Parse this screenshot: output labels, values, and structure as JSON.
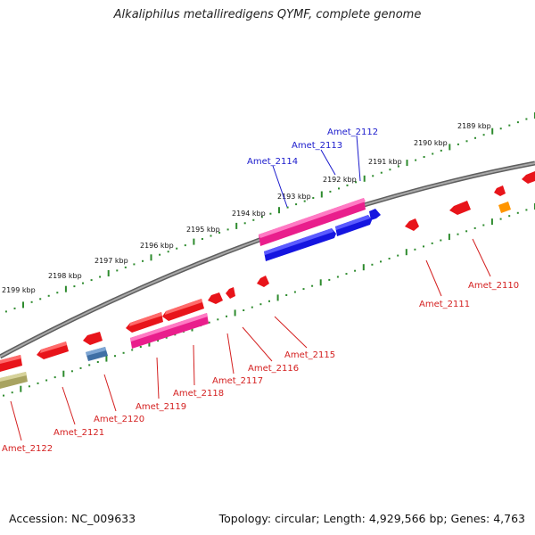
{
  "title": "Alkaliphilus metalliredigens QYMF, complete genome",
  "footer": {
    "accession": "Accession: NC_009633",
    "summary": "Topology: circular; Length: 4,929,566 bp; Genes: 4,763"
  },
  "colors": {
    "backbone": "#8c8c8c",
    "ruler_tick": "#2e8b2e",
    "forward_label": "#1a1acc",
    "reverse_label": "#d42020",
    "gene_red": "#e8141a",
    "gene_magenta": "#e91e8c",
    "gene_blue": "#1515e0",
    "gene_steel": "#4a7fb5",
    "gene_orange": "#ff9500",
    "gene_olive": "#b5b070"
  },
  "ruler_labels": [
    "2189 kbp",
    "2190 kbp",
    "2191 kbp",
    "2192 kbp",
    "2193 kbp",
    "2194 kbp",
    "2195 kbp",
    "2196 kbp",
    "2197 kbp",
    "2198 kbp",
    "2199 kbp"
  ],
  "forward_genes": [
    "Amet_2112",
    "Amet_2113",
    "Amet_2114"
  ],
  "reverse_genes": [
    "Amet_2110",
    "Amet_2111",
    "Amet_2115",
    "Amet_2116",
    "Amet_2117",
    "Amet_2118",
    "Amet_2119",
    "Amet_2120",
    "Amet_2121",
    "Amet_2122"
  ]
}
